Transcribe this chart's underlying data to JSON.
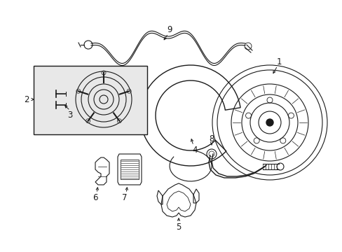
{
  "background_color": "#ffffff",
  "line_color": "#1a1a1a",
  "box_fill": "#e8e8e8",
  "figsize": [
    4.89,
    3.6
  ],
  "dpi": 100
}
